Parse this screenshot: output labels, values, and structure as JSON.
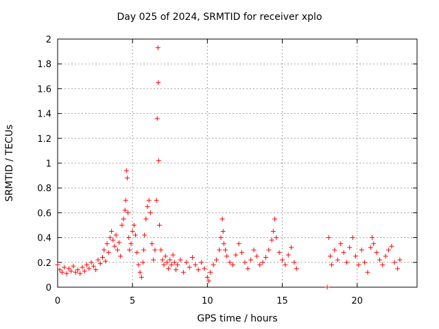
{
  "chart_data": {
    "type": "scatter",
    "title": "Day 025 of 2024, SRMTID for receiver xplo",
    "xlabel": "GPS time / hours",
    "ylabel": "SRMTID / TECUs",
    "xlim": [
      0,
      24
    ],
    "ylim": [
      0,
      2
    ],
    "xticks": [
      0,
      5,
      10,
      15,
      20
    ],
    "yticks": [
      0,
      0.2,
      0.4,
      0.6,
      0.8,
      1,
      1.2,
      1.4,
      1.6,
      1.8,
      2
    ],
    "grid": true,
    "marker": "+",
    "color": "#ff0000",
    "series": [
      {
        "name": "SRMTID",
        "x": [
          0.0,
          0.15,
          0.3,
          0.45,
          0.6,
          0.75,
          0.9,
          1.05,
          1.2,
          1.35,
          1.5,
          1.65,
          1.8,
          1.95,
          2.1,
          2.25,
          2.4,
          2.55,
          2.7,
          2.85,
          3.0,
          3.1,
          3.2,
          3.3,
          3.4,
          3.5,
          3.6,
          3.7,
          3.8,
          3.9,
          4.0,
          4.1,
          4.2,
          4.3,
          4.4,
          4.5,
          4.55,
          4.6,
          4.65,
          4.7,
          4.75,
          4.8,
          4.9,
          5.0,
          5.1,
          5.2,
          5.3,
          5.4,
          5.5,
          5.6,
          5.7,
          5.75,
          5.8,
          5.9,
          6.0,
          6.1,
          6.2,
          6.3,
          6.4,
          6.5,
          6.6,
          6.65,
          6.7,
          6.72,
          6.75,
          6.8,
          6.9,
          7.0,
          7.1,
          7.2,
          7.3,
          7.4,
          7.5,
          7.6,
          7.7,
          7.8,
          7.9,
          8.0,
          8.2,
          8.4,
          8.6,
          8.8,
          9.0,
          9.2,
          9.4,
          9.6,
          9.8,
          10.0,
          10.1,
          10.2,
          10.4,
          10.6,
          10.8,
          10.9,
          11.0,
          11.05,
          11.1,
          11.2,
          11.3,
          11.5,
          11.7,
          11.9,
          12.1,
          12.3,
          12.5,
          12.7,
          12.9,
          13.1,
          13.3,
          13.5,
          13.7,
          13.9,
          14.1,
          14.3,
          14.4,
          14.5,
          14.6,
          14.8,
          15.0,
          15.2,
          15.4,
          15.6,
          15.8,
          15.95,
          18.0,
          18.1,
          18.2,
          18.3,
          18.5,
          18.7,
          18.9,
          19.1,
          19.3,
          19.5,
          19.7,
          19.9,
          20.1,
          20.3,
          20.5,
          20.7,
          20.9,
          21.0,
          21.1,
          21.3,
          21.5,
          21.7,
          21.9,
          22.1,
          22.3,
          22.5,
          22.7,
          22.85
        ],
        "y": [
          0.18,
          0.14,
          0.12,
          0.16,
          0.11,
          0.15,
          0.13,
          0.17,
          0.12,
          0.14,
          0.11,
          0.16,
          0.13,
          0.18,
          0.15,
          0.2,
          0.17,
          0.14,
          0.22,
          0.19,
          0.24,
          0.3,
          0.21,
          0.35,
          0.28,
          0.4,
          0.45,
          0.38,
          0.33,
          0.42,
          0.3,
          0.36,
          0.25,
          0.5,
          0.55,
          0.62,
          0.7,
          0.94,
          0.88,
          0.6,
          0.4,
          0.3,
          0.35,
          0.45,
          0.5,
          0.42,
          0.28,
          0.18,
          0.12,
          0.08,
          0.2,
          0.3,
          0.42,
          0.55,
          0.65,
          0.7,
          0.6,
          0.35,
          0.22,
          0.3,
          0.7,
          1.36,
          1.93,
          1.65,
          1.02,
          0.5,
          0.3,
          0.22,
          0.18,
          0.25,
          0.2,
          0.15,
          0.22,
          0.18,
          0.26,
          0.2,
          0.14,
          0.18,
          0.22,
          0.12,
          0.2,
          0.16,
          0.24,
          0.18,
          0.14,
          0.2,
          0.15,
          0.08,
          0.05,
          0.12,
          0.18,
          0.22,
          0.3,
          0.4,
          0.55,
          0.45,
          0.35,
          0.3,
          0.25,
          0.2,
          0.18,
          0.26,
          0.35,
          0.28,
          0.2,
          0.15,
          0.22,
          0.3,
          0.25,
          0.18,
          0.2,
          0.24,
          0.3,
          0.38,
          0.45,
          0.55,
          0.4,
          0.28,
          0.22,
          0.18,
          0.26,
          0.32,
          0.2,
          0.15,
          0.0,
          0.4,
          0.25,
          0.18,
          0.3,
          0.22,
          0.35,
          0.28,
          0.2,
          0.32,
          0.4,
          0.25,
          0.18,
          0.3,
          0.2,
          0.12,
          0.32,
          0.4,
          0.35,
          0.28,
          0.22,
          0.18,
          0.25,
          0.3,
          0.33,
          0.2,
          0.15,
          0.22
        ]
      }
    ]
  }
}
